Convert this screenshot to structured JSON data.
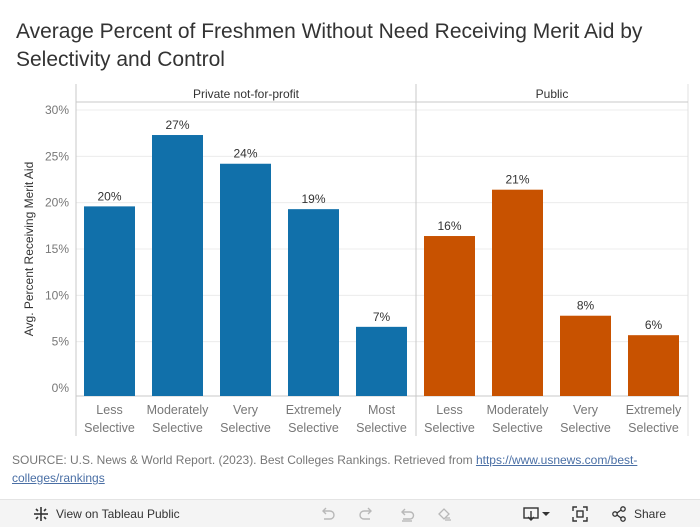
{
  "title": "Average Percent of Freshmen Without Need Receiving Merit Aid by Selectivity and Control",
  "source": {
    "text": "SOURCE: U.S. News & World Report. (2023). Best Colleges Rankings. Retrieved from ",
    "link": "https://www.usnews.com/best-colleges/rankings"
  },
  "colors": {
    "private": "#1170aa",
    "public": "#c85200"
  },
  "chart_data": {
    "type": "bar",
    "ylabel": "Avg. Percent Receiving Merit Aid",
    "ylim": [
      0,
      30
    ],
    "yticks": [
      "0%",
      "5%",
      "10%",
      "15%",
      "20%",
      "25%",
      "30%"
    ],
    "panels": [
      {
        "name": "Private not-for-profit",
        "color": "#1170aa",
        "categories": [
          [
            "Less",
            "Selective"
          ],
          [
            "Moderately",
            "Selective"
          ],
          [
            "Very",
            "Selective"
          ],
          [
            "Extremely",
            "Selective"
          ],
          [
            "Most",
            "Selective"
          ]
        ],
        "values": [
          19.6,
          27.3,
          24.2,
          19.3,
          6.6
        ],
        "labels": [
          "20%",
          "27%",
          "24%",
          "19%",
          "7%"
        ]
      },
      {
        "name": "Public",
        "color": "#c85200",
        "categories": [
          [
            "Less",
            "Selective"
          ],
          [
            "Moderately",
            "Selective"
          ],
          [
            "Very",
            "Selective"
          ],
          [
            "Extremely",
            "Selective"
          ]
        ],
        "values": [
          16.4,
          21.4,
          7.8,
          5.7
        ],
        "labels": [
          "16%",
          "21%",
          "8%",
          "6%"
        ]
      }
    ]
  },
  "toolbar": {
    "view_label": "View on Tableau Public",
    "share_label": "Share"
  }
}
